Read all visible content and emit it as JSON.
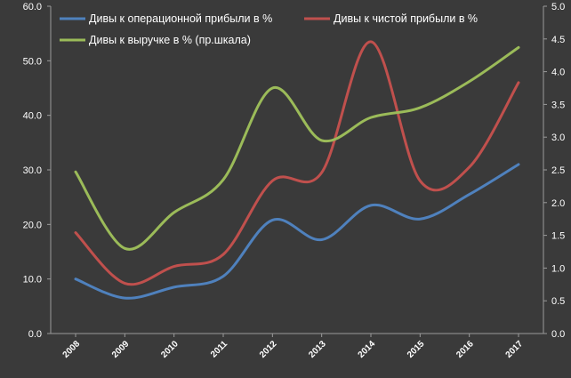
{
  "chart_data": {
    "type": "line",
    "categories": [
      "2008",
      "2009",
      "2010",
      "2011",
      "2012",
      "2013",
      "2014",
      "2015",
      "2016",
      "2017"
    ],
    "y_left": {
      "min": 0,
      "max": 60,
      "step": 10,
      "tick_labels": [
        "0.0",
        "10.0",
        "20.0",
        "30.0",
        "40.0",
        "50.0",
        "60.0"
      ]
    },
    "y_right": {
      "min": 0,
      "max": 5,
      "step": 0.5,
      "tick_labels": [
        "0.0",
        "0.5",
        "1.0",
        "1.5",
        "2.0",
        "2.5",
        "3.0",
        "3.5",
        "4.0",
        "4.5",
        "5.0"
      ]
    },
    "grid": false,
    "legend_position": "top",
    "series": [
      {
        "name": "Дивы к операционной прибыли в %",
        "axis": "left",
        "color": "#4f81bd",
        "values": [
          10.0,
          6.5,
          8.5,
          10.5,
          20.8,
          17.2,
          23.5,
          21.0,
          25.5,
          31.0
        ]
      },
      {
        "name": "Дивы к чистой прибыли в %",
        "axis": "left",
        "color": "#c0504d",
        "values": [
          18.5,
          9.2,
          12.3,
          14.5,
          28.0,
          29.5,
          53.5,
          28.0,
          30.5,
          46.0
        ]
      },
      {
        "name": "Дивы к выручке в % (пр.шкала)",
        "axis": "right",
        "color": "#9bbb59",
        "values": [
          2.47,
          1.3,
          1.85,
          2.35,
          3.75,
          2.95,
          3.3,
          3.45,
          3.85,
          4.37
        ]
      }
    ]
  }
}
